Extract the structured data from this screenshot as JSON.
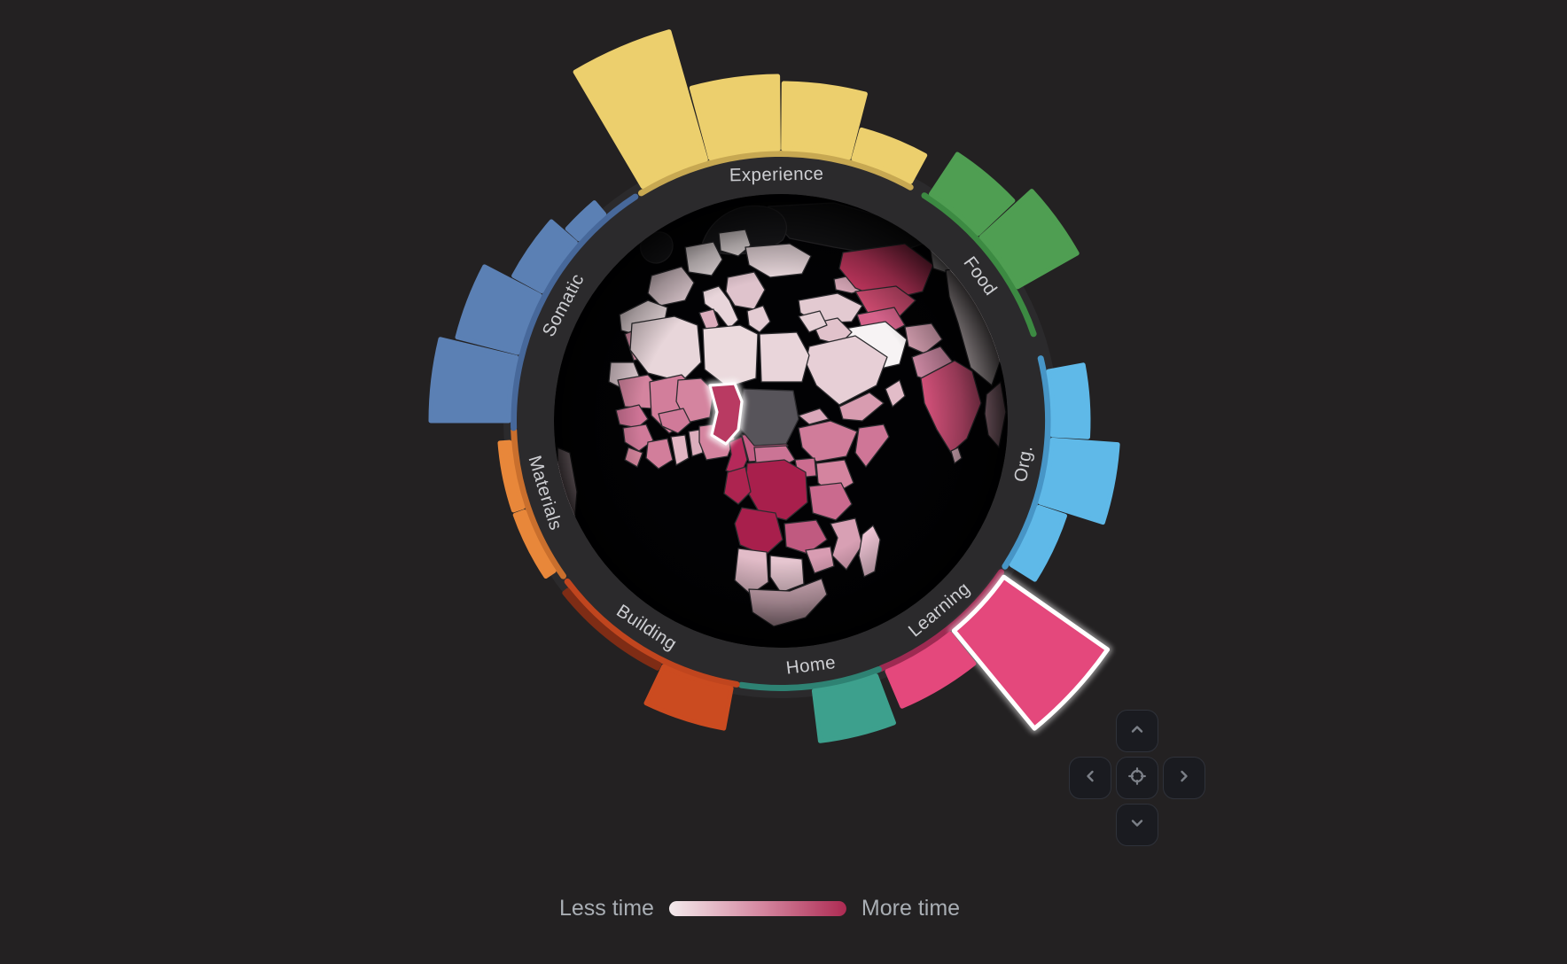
{
  "app": {
    "background": "#232122",
    "ring_color": "#2b2a2c",
    "ocean_color": "#020204",
    "border_color": "#2d2c2f",
    "label_color": "#cdced2"
  },
  "wheel": {
    "categories": [
      {
        "id": "experience",
        "label": "Experience",
        "label_angle": -1,
        "color": "#eccf6d",
        "arc_color": "#c7a852",
        "arc": [
          -31.5,
          29
        ],
        "bars": [
          {
            "a0": -30.5,
            "a1": -16,
            "value": 150
          },
          {
            "a0": -15,
            "a1": -0.5,
            "value": 82
          },
          {
            "a0": 0.5,
            "a1": 14.5,
            "value": 74
          },
          {
            "a0": 15.5,
            "a1": 28.5,
            "value": 34
          }
        ]
      },
      {
        "id": "food",
        "label": "Food",
        "label_angle": 54,
        "color": "#4f9e52",
        "arc_color": "#3c8a42",
        "arc": [
          32.5,
          71
        ],
        "bars": [
          {
            "a0": 33.5,
            "a1": 46.5,
            "value": 54
          },
          {
            "a0": 47.5,
            "a1": 60.5,
            "value": 77
          }
        ]
      },
      {
        "id": "org",
        "label": "Org.",
        "label_angle": 100,
        "color": "#5fb9e8",
        "arc_color": "#4795c6",
        "arc": [
          76.5,
          123
        ],
        "bars": [
          {
            "a0": 79.5,
            "a1": 93,
            "value": 40
          },
          {
            "a0": 94,
            "a1": 107.5,
            "value": 74
          },
          {
            "a0": 108.5,
            "a1": 122,
            "value": 31
          }
        ]
      },
      {
        "id": "learning",
        "label": "Learning",
        "label_angle": 140,
        "color": "#e4487c",
        "arc_color": "#9e2a52",
        "arc": [
          124.5,
          158
        ],
        "bars": [
          {
            "a0": 125,
            "a1": 140.5,
            "value": 143,
            "highlighted": true
          },
          {
            "a0": 141.5,
            "a1": 157,
            "value": 43
          }
        ]
      },
      {
        "id": "home",
        "label": "Home",
        "label_angle": 173,
        "color": "#3da08d",
        "arc_color": "#2e8273",
        "arc": [
          158.5,
          188.5
        ],
        "bars": [
          {
            "a0": 159.5,
            "a1": 173,
            "value": 57
          }
        ]
      },
      {
        "id": "building",
        "label": "Building",
        "label_angle": 213,
        "color": "#cb4b20",
        "arc_color": "#c0451e",
        "arc": [
          189.5,
          233
        ],
        "bars": [
          {
            "a0": 190.5,
            "a1": 205.5,
            "value": 46
          },
          {
            "a0": 206.5,
            "a1": 231.5,
            "value": 5,
            "color": "#7e2c15"
          }
        ]
      },
      {
        "id": "materials",
        "label": "Materials",
        "label_angle": 253,
        "color": "#e8873a",
        "arc_color": "#c96f2d",
        "arc": [
          234.5,
          268
        ],
        "bars": [
          {
            "a0": 236.5,
            "a1": 250.5,
            "value": 11
          },
          {
            "a0": 251.5,
            "a1": 265.5,
            "value": 11
          }
        ]
      },
      {
        "id": "somatic",
        "label": "Somatic",
        "label_angle": 298,
        "color": "#5b80b4",
        "arc_color": "#47689a",
        "arc": [
          268.5,
          327
        ],
        "bars": [
          {
            "a0": 270,
            "a1": 283.5,
            "value": 88
          },
          {
            "a0": 284.5,
            "a1": 297.5,
            "value": 70
          },
          {
            "a0": 298.5,
            "a1": 311,
            "value": 36
          },
          {
            "a0": 312,
            "a1": 319.5,
            "value": 17
          }
        ]
      }
    ]
  },
  "map": {
    "no_data_color": "#57545a",
    "highlight": {
      "country": "Chad",
      "color": "#b93a62"
    },
    "countries": [
      {
        "id": "russia",
        "name": "Russia",
        "color": "#161618"
      },
      {
        "id": "scandinavia",
        "name": "Scandinavia",
        "color": "#1a1a1d"
      },
      {
        "id": "uk",
        "name": "United Kingdom",
        "color": "#1a1a1d"
      },
      {
        "id": "poland",
        "name": "Poland",
        "color": "#f0e6e7"
      },
      {
        "id": "germany",
        "name": "Germany",
        "color": "#eee3e5"
      },
      {
        "id": "france",
        "name": "France",
        "color": "#e4cfd5"
      },
      {
        "id": "iberia",
        "name": "Spain & Portugal",
        "color": "#e9dadd"
      },
      {
        "id": "italy",
        "name": "Italy",
        "color": "#e8d5da"
      },
      {
        "id": "balkans",
        "name": "Balkans",
        "color": "#dfc3cc"
      },
      {
        "id": "greece",
        "name": "Greece",
        "color": "#e4ccd3"
      },
      {
        "id": "ukraine",
        "name": "Ukraine",
        "color": "#ead9dd"
      },
      {
        "id": "turkey",
        "name": "Turkey",
        "color": "#e3cad1"
      },
      {
        "id": "caucasus",
        "name": "Caucasus",
        "color": "#d8a8b8"
      },
      {
        "id": "kazakhstan",
        "name": "Kazakhstan",
        "color": "#cb3963"
      },
      {
        "id": "mongolia",
        "name": "Mongolia",
        "color": "#f1eaec"
      },
      {
        "id": "china",
        "name": "China",
        "color": "#e8dadd"
      },
      {
        "id": "uzbekistan",
        "name": "Uzbekistan",
        "color": "#cc4a6f"
      },
      {
        "id": "turkmenistan",
        "name": "Turkmenistan",
        "color": "#d5628a"
      },
      {
        "id": "iran",
        "name": "Iran",
        "color": "#f7f3f4"
      },
      {
        "id": "afghanistan",
        "name": "Afghanistan",
        "color": "#d9a2b4"
      },
      {
        "id": "pakistan",
        "name": "Pakistan",
        "color": "#d08ba6"
      },
      {
        "id": "india",
        "name": "India",
        "color": "#d9537d"
      },
      {
        "id": "srilanka",
        "name": "Sri Lanka",
        "color": "#e0b4c2"
      },
      {
        "id": "seasia",
        "name": "Southeast Asia",
        "color": "#d8a4b6"
      },
      {
        "id": "iraq",
        "name": "Iraq",
        "color": "#e1c2cb"
      },
      {
        "id": "syria",
        "name": "Syria",
        "color": "#e6d0d6"
      },
      {
        "id": "saudi",
        "name": "Saudi Arabia",
        "color": "#e7cfd6"
      },
      {
        "id": "yemen",
        "name": "Yemen",
        "color": "#d89cb0"
      },
      {
        "id": "oman",
        "name": "Oman",
        "color": "#e2bcc8"
      },
      {
        "id": "morocco",
        "name": "Morocco",
        "color": "#d88fa7"
      },
      {
        "id": "wsahara",
        "name": "Western Sahara",
        "color": "#e4d0d6"
      },
      {
        "id": "algeria",
        "name": "Algeria",
        "color": "#e8d6da"
      },
      {
        "id": "tunisia",
        "name": "Tunisia",
        "color": "#dcadbd"
      },
      {
        "id": "libya",
        "name": "Libya",
        "color": "#ebdadd"
      },
      {
        "id": "egypt",
        "name": "Egypt",
        "color": "#e9d5da"
      },
      {
        "id": "mauritania",
        "name": "Mauritania",
        "color": "#d4849f"
      },
      {
        "id": "mali",
        "name": "Mali",
        "color": "#d27e9b"
      },
      {
        "id": "niger",
        "name": "Niger",
        "color": "#d4849f"
      },
      {
        "id": "senegal",
        "name": "Senegal",
        "color": "#cf7496"
      },
      {
        "id": "guinea",
        "name": "Guinea",
        "color": "#d07a99"
      },
      {
        "id": "sierraleone",
        "name": "Sierra Leone",
        "color": "#d8879f"
      },
      {
        "id": "ivorycoast",
        "name": "Cote d'Ivoire",
        "color": "#d27e9b"
      },
      {
        "id": "ghana",
        "name": "Ghana",
        "color": "#e2b6c3"
      },
      {
        "id": "togobenin",
        "name": "Togo & Benin",
        "color": "#dcaebd"
      },
      {
        "id": "burkina",
        "name": "Burkina Faso",
        "color": "#d07a99"
      },
      {
        "id": "nigeria",
        "name": "Nigeria",
        "color": "#d4849f"
      },
      {
        "id": "cameroon",
        "name": "Cameroon",
        "color": "#b5295a"
      },
      {
        "id": "car",
        "name": "Central African Republic",
        "color": "#c45e85"
      },
      {
        "id": "sudan",
        "name": "Sudan",
        "color": "#57545a",
        "no_data": true
      },
      {
        "id": "southsudan",
        "name": "South Sudan",
        "color": "#cb7495"
      },
      {
        "id": "eritrea",
        "name": "Eritrea",
        "color": "#daa8ba"
      },
      {
        "id": "ethiopia",
        "name": "Ethiopia",
        "color": "#d07c9a"
      },
      {
        "id": "somalia",
        "name": "Somalia",
        "color": "#cf7697"
      },
      {
        "id": "kenya",
        "name": "Kenya",
        "color": "#d4849f"
      },
      {
        "id": "uganda",
        "name": "Uganda",
        "color": "#cc6d90"
      },
      {
        "id": "drc",
        "name": "DR Congo",
        "color": "#a81f4c"
      },
      {
        "id": "gabon",
        "name": "Gabon & Congo",
        "color": "#ad2450"
      },
      {
        "id": "angola",
        "name": "Angola",
        "color": "#a81f4c"
      },
      {
        "id": "zambia",
        "name": "Zambia",
        "color": "#c05a80"
      },
      {
        "id": "tanzania",
        "name": "Tanzania",
        "color": "#ca6a8e"
      },
      {
        "id": "mozambique",
        "name": "Mozambique",
        "color": "#d8a0b4"
      },
      {
        "id": "zimbabwe",
        "name": "Zimbabwe",
        "color": "#d89cb2"
      },
      {
        "id": "namibia",
        "name": "Namibia",
        "color": "#e2bcc8"
      },
      {
        "id": "botswana",
        "name": "Botswana",
        "color": "#e6c6d0"
      },
      {
        "id": "southafrica",
        "name": "South Africa",
        "color": "#e2bac7"
      },
      {
        "id": "madagascar",
        "name": "Madagascar",
        "color": "#eec4d4"
      },
      {
        "id": "samerica",
        "name": "South America (limb)",
        "color": "#e8ccd6"
      },
      {
        "id": "chad",
        "name": "Chad",
        "color": "#b93a62",
        "highlighted": true
      }
    ]
  },
  "legend": {
    "less_label": "Less time",
    "more_label": "More time",
    "gradient": [
      "#f3eaec",
      "#d68ba3",
      "#ad2b53"
    ]
  },
  "nav": {
    "buttons": [
      {
        "id": "pan-up",
        "icon": "chevron-up"
      },
      {
        "id": "pan-left",
        "icon": "chevron-left"
      },
      {
        "id": "recenter",
        "icon": "target"
      },
      {
        "id": "pan-right",
        "icon": "chevron-right"
      },
      {
        "id": "pan-down",
        "icon": "chevron-down"
      }
    ]
  },
  "chart_data": {
    "type": "bar",
    "subtype": "radial-bars-around-choropleth-globe",
    "title": "",
    "units": "relative bar length in px (no numeric axis shown on screen)",
    "categories": [
      "Experience",
      "Food",
      "Org.",
      "Learning",
      "Home",
      "Building",
      "Materials",
      "Somatic"
    ],
    "series": [
      {
        "name": "Experience",
        "values": [
          150,
          82,
          74,
          34
        ]
      },
      {
        "name": "Food",
        "values": [
          54,
          77
        ]
      },
      {
        "name": "Org.",
        "values": [
          40,
          74,
          31
        ]
      },
      {
        "name": "Learning",
        "values": [
          143,
          43
        ]
      },
      {
        "name": "Home",
        "values": [
          57
        ]
      },
      {
        "name": "Building",
        "values": [
          46,
          5
        ]
      },
      {
        "name": "Materials",
        "values": [
          11,
          11
        ]
      },
      {
        "name": "Somatic",
        "values": [
          88,
          70,
          36,
          17
        ]
      }
    ],
    "highlighted": {
      "category": "Learning",
      "bar_index": 0,
      "country": "Chad"
    },
    "legend": {
      "min_label": "Less time",
      "max_label": "More time",
      "scale": "sequential light-pink to deep-crimson choropleth"
    },
    "no_data_countries": [
      "Sudan"
    ]
  }
}
